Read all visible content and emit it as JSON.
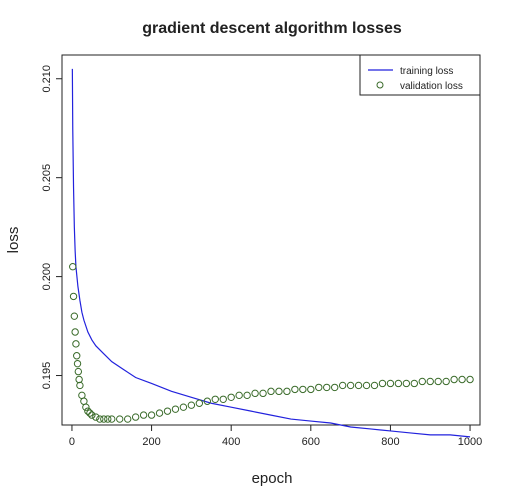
{
  "chart_data": {
    "type": "line",
    "title": "gradient descent algorithm losses",
    "xlabel": "epoch",
    "ylabel": "loss",
    "xlim": [
      -25,
      1025
    ],
    "ylim": [
      0.1925,
      0.2112
    ],
    "xticks": [
      0,
      200,
      400,
      600,
      800,
      1000
    ],
    "yticks": [
      0.195,
      0.2,
      0.205,
      0.21
    ],
    "xtick_labels": [
      "0",
      "200",
      "400",
      "600",
      "800",
      "1000"
    ],
    "ytick_labels": [
      "0.195",
      "0.200",
      "0.205",
      "0.210"
    ],
    "legend_position": "top-right",
    "grid": false,
    "series": [
      {
        "name": "training loss",
        "style": "line",
        "color": "#2222dd",
        "x": [
          1,
          2,
          4,
          6,
          8,
          10,
          15,
          20,
          25,
          30,
          40,
          50,
          60,
          80,
          100,
          130,
          160,
          200,
          250,
          300,
          350,
          400,
          450,
          500,
          550,
          600,
          650,
          700,
          750,
          800,
          850,
          900,
          950,
          1000
        ],
        "y": [
          0.2105,
          0.2075,
          0.2045,
          0.2025,
          0.2013,
          0.2005,
          0.1995,
          0.1988,
          0.1982,
          0.1978,
          0.1972,
          0.1968,
          0.1965,
          0.1961,
          0.1957,
          0.1953,
          0.1949,
          0.1946,
          0.1942,
          0.1939,
          0.1936,
          0.1934,
          0.1932,
          0.193,
          0.1928,
          0.1927,
          0.1926,
          0.1924,
          0.1923,
          0.1922,
          0.1921,
          0.192,
          0.192,
          0.1919
        ]
      },
      {
        "name": "validation loss",
        "style": "points",
        "color": "#3a6b2a",
        "x": [
          2,
          4,
          6,
          8,
          10,
          12,
          14,
          16,
          18,
          20,
          25,
          30,
          35,
          40,
          45,
          50,
          60,
          70,
          80,
          90,
          100,
          120,
          140,
          160,
          180,
          200,
          220,
          240,
          260,
          280,
          300,
          320,
          340,
          360,
          380,
          400,
          420,
          440,
          460,
          480,
          500,
          520,
          540,
          560,
          580,
          600,
          620,
          640,
          660,
          680,
          700,
          720,
          740,
          760,
          780,
          800,
          820,
          840,
          860,
          880,
          900,
          920,
          940,
          960,
          980,
          1000
        ],
        "y": [
          0.2005,
          0.199,
          0.198,
          0.1972,
          0.1966,
          0.196,
          0.1956,
          0.1952,
          0.1948,
          0.1945,
          0.194,
          0.1937,
          0.1934,
          0.1932,
          0.1931,
          0.193,
          0.1929,
          0.1928,
          0.1928,
          0.1928,
          0.1928,
          0.1928,
          0.1928,
          0.1929,
          0.193,
          0.193,
          0.1931,
          0.1932,
          0.1933,
          0.1934,
          0.1935,
          0.1936,
          0.1937,
          0.1938,
          0.1938,
          0.1939,
          0.194,
          0.194,
          0.1941,
          0.1941,
          0.1942,
          0.1942,
          0.1942,
          0.1943,
          0.1943,
          0.1943,
          0.1944,
          0.1944,
          0.1944,
          0.1945,
          0.1945,
          0.1945,
          0.1945,
          0.1945,
          0.1946,
          0.1946,
          0.1946,
          0.1946,
          0.1946,
          0.1947,
          0.1947,
          0.1947,
          0.1947,
          0.1948,
          0.1948,
          0.1948
        ]
      }
    ]
  }
}
